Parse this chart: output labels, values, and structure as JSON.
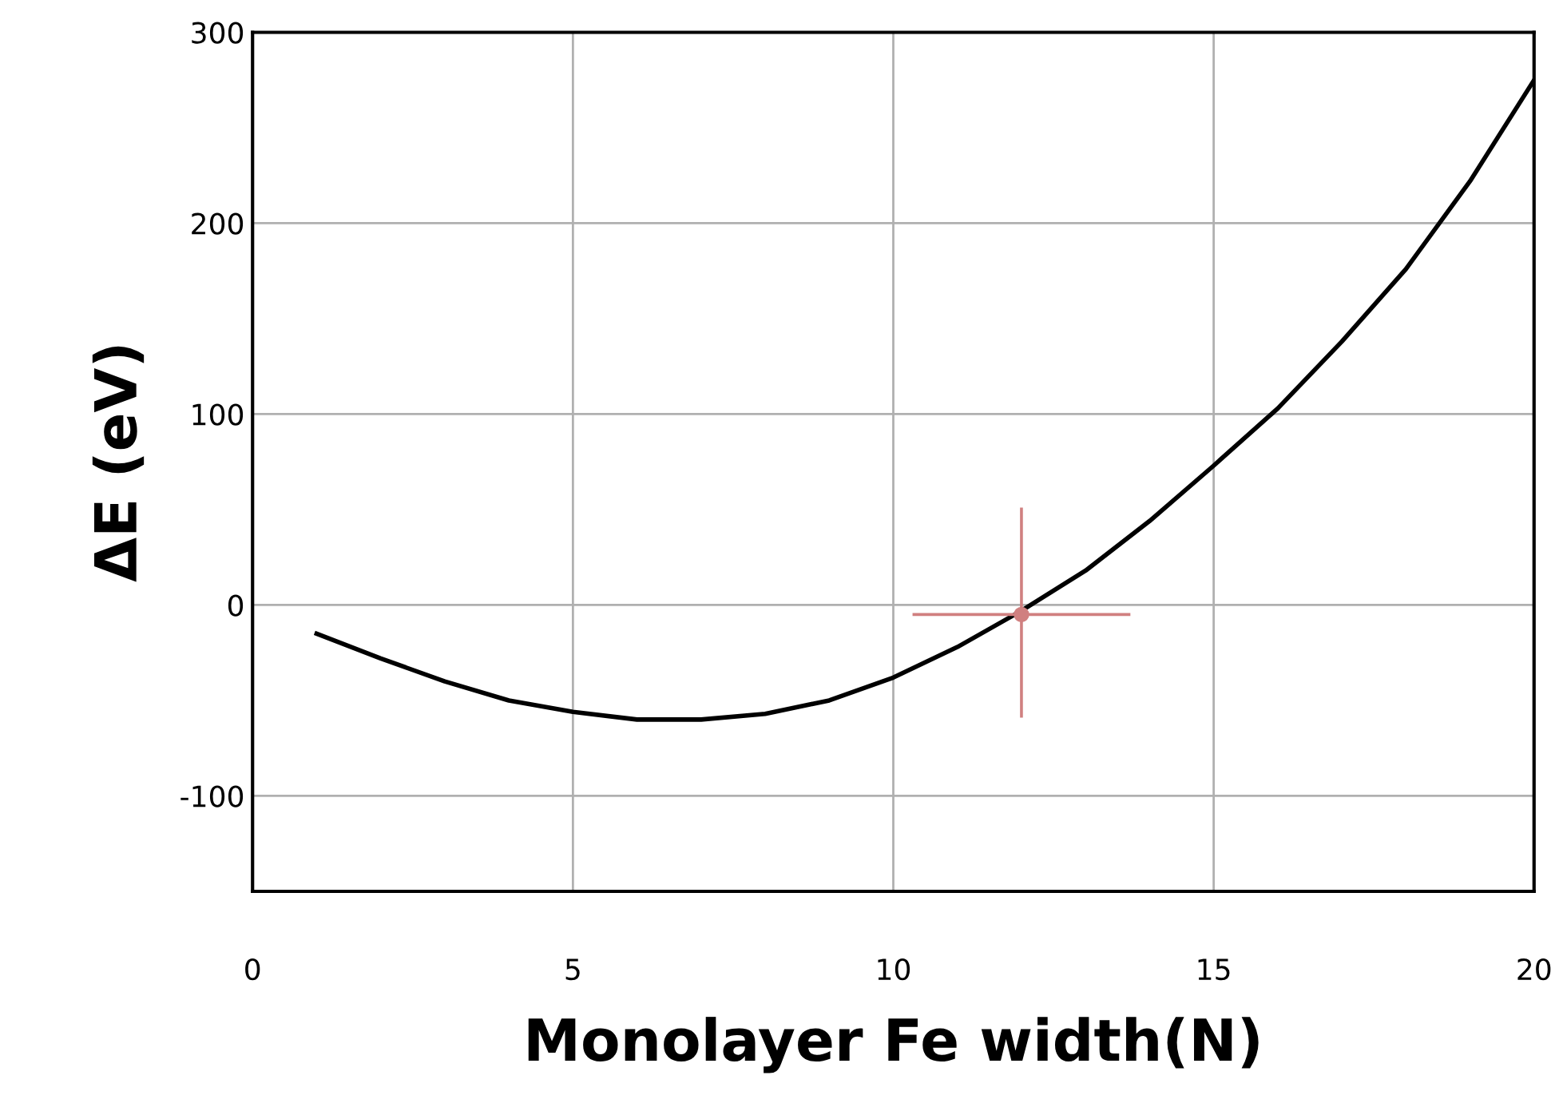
{
  "chart_data": {
    "type": "line",
    "xlabel": "Monolayer Fe width(N)",
    "ylabel": "ΔE (eV)",
    "xlim": [
      0,
      20
    ],
    "xticks": [
      0,
      5,
      10,
      15,
      20
    ],
    "ylim": [
      -150,
      300
    ],
    "yticks": [
      -100,
      0,
      100,
      200,
      300
    ],
    "grid": true,
    "series": [
      {
        "color": "#000000",
        "x": [
          1,
          2,
          3,
          4,
          5,
          6,
          7,
          8,
          9,
          10,
          11,
          12,
          13,
          14,
          15,
          16,
          17,
          18,
          19,
          20
        ],
        "values": [
          -15,
          -28,
          -40,
          -50,
          -56,
          -60,
          -60,
          -57,
          -50,
          -38,
          -22,
          -3,
          18,
          44,
          73,
          103,
          138,
          176,
          222,
          275
        ]
      },
      {
        "type": "scatter",
        "marker": "circle",
        "color": "#d08080",
        "x": [
          12
        ],
        "values": [
          -5
        ],
        "xerrors": [
          [
            10.3,
            13.7
          ]
        ],
        "errors": [
          [
            -59,
            51
          ]
        ]
      }
    ]
  }
}
